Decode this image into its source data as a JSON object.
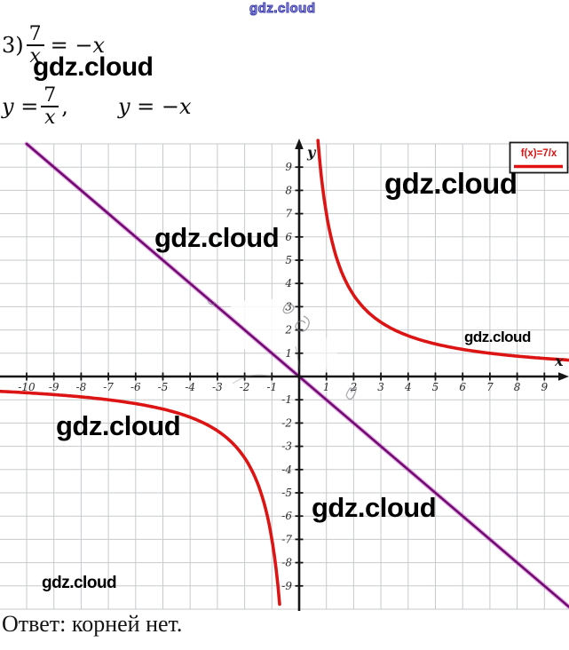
{
  "watermark": {
    "text": "gdz.cloud"
  },
  "header": {
    "problem_number": "3)",
    "eq1": {
      "num": "7",
      "den": "x",
      "rhs": "= −x"
    },
    "eq2": {
      "lhs": "y =",
      "num": "7",
      "den": "x",
      "comma": ",",
      "second": "y = −x"
    }
  },
  "answer": {
    "text": "Ответ: корней нет."
  },
  "chart_data": {
    "type": "line",
    "title": "",
    "xlabel": "x",
    "ylabel": "y",
    "xlim": [
      -11,
      9.9
    ],
    "ylim": [
      -10.2,
      10.2
    ],
    "grid": true,
    "x_ticks": [
      -10,
      -9,
      -8,
      -7,
      -6,
      -5,
      -4,
      -3,
      -2,
      -1,
      1,
      2,
      3,
      4,
      5,
      6,
      7,
      8,
      9
    ],
    "y_ticks": [
      9,
      8,
      7,
      6,
      5,
      4,
      3,
      2,
      1,
      -1,
      -2,
      -3,
      -4,
      -5,
      -6,
      -7,
      -8,
      -9
    ],
    "legend": {
      "label": "f(x)=7/x",
      "position": "top-right",
      "color": "#e01111"
    },
    "series": [
      {
        "name": "f(x)=7/x",
        "equation": "y = 7/x",
        "kind": "reciprocal",
        "k": 7,
        "color": "#dc1414",
        "branches": [
          {
            "x_from": 0.69,
            "x_to": 9.95
          },
          {
            "x_from": -11.05,
            "x_to": -0.715
          }
        ],
        "sample_points": [
          [
            1,
            7
          ],
          [
            2,
            3.5
          ],
          [
            7,
            1
          ],
          [
            -1,
            -7
          ],
          [
            -2,
            -3.5
          ],
          [
            -7,
            -1
          ]
        ]
      },
      {
        "name": "y = −x",
        "equation": "y = −x",
        "kind": "linear",
        "slope": -1,
        "intercept": 0,
        "color": "#730a74",
        "glow_color": "#c04ec0",
        "points": [
          [
            -10,
            10
          ],
          [
            9.9,
            -9.9
          ]
        ]
      }
    ],
    "intersections_shown": "none"
  },
  "colors": {
    "grid": "#c7cacc",
    "axis": "#151515",
    "tick_label": "#2b2b2b",
    "legend_text": "#e01111",
    "watermark_outline": "#3c3cae"
  }
}
